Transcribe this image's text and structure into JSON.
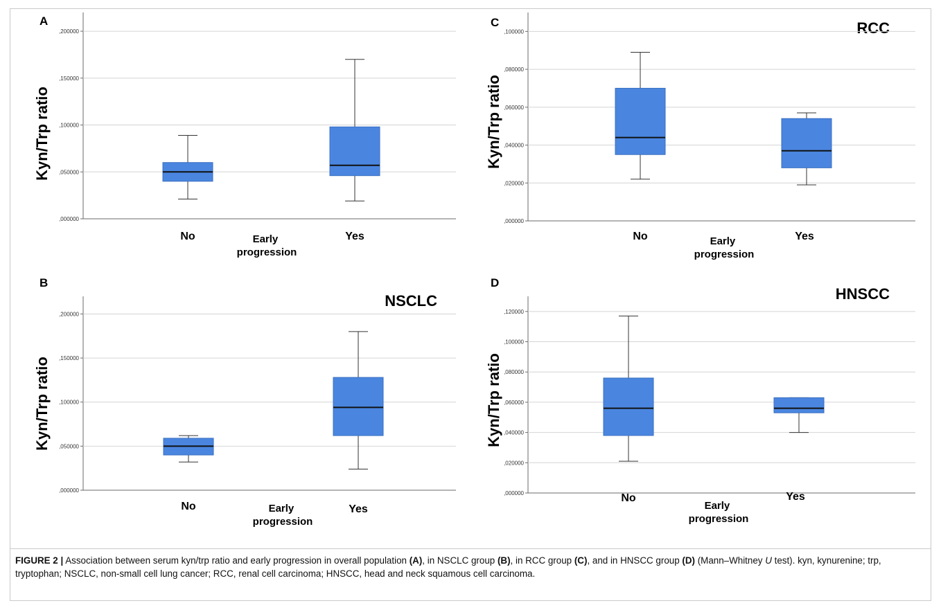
{
  "caption": {
    "fig_label": "FIGURE 2 |",
    "s1": " Association between serum kyn/trp ratio and early progression in overall population ",
    "r1": "(A)",
    "s2": ", in NSCLC group ",
    "r2": "(B)",
    "s3": ", in RCC group ",
    "r3": "(C)",
    "s4": ", and in HNSCC group ",
    "r4": "(D)",
    "s5": " (Mann–Whitney ",
    "u": "U",
    "s6": " test). kyn, kynurenine; trp, tryptophan; NSCLC, non-small cell lung cancer; RCC, renal cell carcinoma; HNSCC, head and neck squamous cell carcinoma."
  },
  "colors": {
    "box_fill": "#4a86e0",
    "box_edge": "#3a6fc0",
    "grid": "#d4d4d4",
    "axis": "#6a6a6a"
  },
  "chart_data": [
    {
      "panel": "A",
      "type": "boxplot",
      "title": "",
      "ylabel": "Kyn/Trp ratio",
      "xlabel": "Early progression",
      "ylim": [
        0,
        0.22
      ],
      "yticks": [
        0,
        0.05,
        0.1,
        0.15,
        0.2
      ],
      "ytick_labels": [
        ",000000",
        ",050000",
        ",100000",
        ",150000",
        ",200000"
      ],
      "categories": [
        "No",
        "Yes"
      ],
      "boxes": [
        {
          "min": 0.021,
          "q1": 0.04,
          "median": 0.05,
          "q3": 0.06,
          "max": 0.089
        },
        {
          "min": 0.019,
          "q1": 0.046,
          "median": 0.057,
          "q3": 0.098,
          "max": 0.17
        }
      ]
    },
    {
      "panel": "B",
      "type": "boxplot",
      "title": "NSCLC",
      "ylabel": "Kyn/Trp ratio",
      "xlabel": "Early progression",
      "ylim": [
        0,
        0.22
      ],
      "yticks": [
        0,
        0.05,
        0.1,
        0.15,
        0.2
      ],
      "ytick_labels": [
        ",000000",
        ",050000",
        ",100000",
        ",150000",
        ",200000"
      ],
      "categories": [
        "No",
        "Yes"
      ],
      "boxes": [
        {
          "min": 0.032,
          "q1": 0.04,
          "median": 0.05,
          "q3": 0.059,
          "max": 0.062
        },
        {
          "min": 0.024,
          "q1": 0.062,
          "median": 0.094,
          "q3": 0.128,
          "max": 0.18
        }
      ]
    },
    {
      "panel": "C",
      "type": "boxplot",
      "title": "RCC",
      "ylabel": "Kyn/Trp ratio",
      "xlabel": "Early progression",
      "ylim": [
        0,
        0.11
      ],
      "yticks": [
        0,
        0.02,
        0.04,
        0.06,
        0.08,
        0.1
      ],
      "ytick_labels": [
        ",000000",
        ",020000",
        ",040000",
        ",060000",
        ",080000",
        ",100000"
      ],
      "categories": [
        "No",
        "Yes"
      ],
      "boxes": [
        {
          "min": 0.022,
          "q1": 0.035,
          "median": 0.044,
          "q3": 0.07,
          "max": 0.089
        },
        {
          "min": 0.019,
          "q1": 0.028,
          "median": 0.037,
          "q3": 0.054,
          "max": 0.057
        }
      ]
    },
    {
      "panel": "D",
      "type": "boxplot",
      "title": "HNSCC",
      "ylabel": "Kyn/Trp ratio",
      "xlabel": "Early progression",
      "ylim": [
        0,
        0.13
      ],
      "yticks": [
        0,
        0.02,
        0.04,
        0.06,
        0.08,
        0.1,
        0.12
      ],
      "ytick_labels": [
        ",000000",
        ",020000",
        ",040000",
        ",060000",
        ",080000",
        ",100000",
        ",120000"
      ],
      "categories": [
        "No",
        "Yes"
      ],
      "boxes": [
        {
          "min": 0.021,
          "q1": 0.038,
          "median": 0.056,
          "q3": 0.076,
          "max": 0.117
        },
        {
          "min": 0.04,
          "q1": 0.053,
          "median": 0.056,
          "q3": 0.063,
          "max": 0.063
        }
      ]
    }
  ]
}
